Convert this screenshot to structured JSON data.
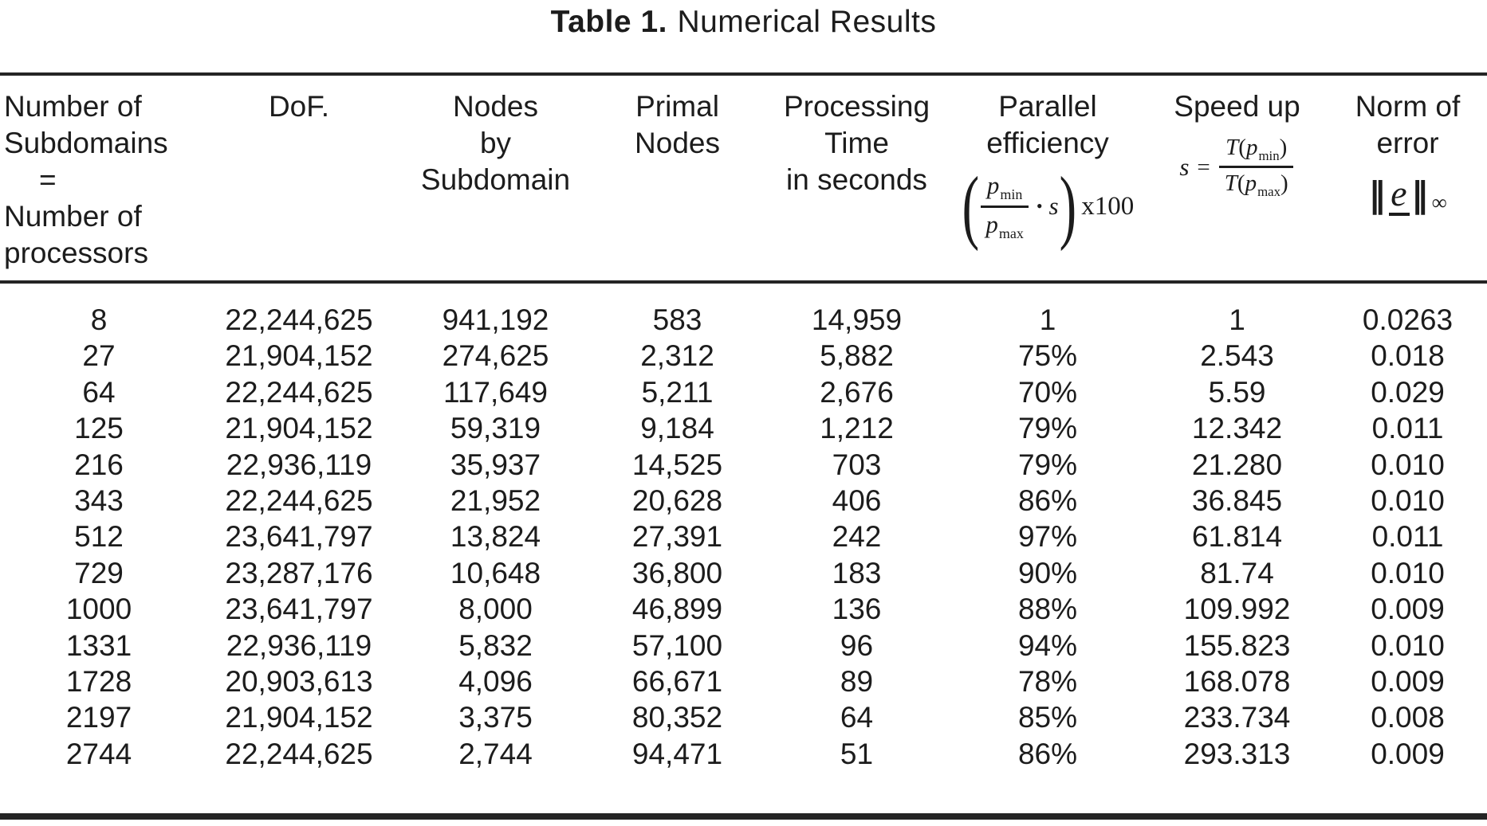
{
  "page": {
    "background": "#ffffff",
    "ink": "#1c1c1c"
  },
  "title": {
    "bold": "Table 1.",
    "rest": "Numerical Results"
  },
  "table": {
    "columns": [
      {
        "id": "subdomains",
        "header_lines": [
          "Number of",
          "Subdomains",
          "=",
          "Number of",
          "processors"
        ]
      },
      {
        "id": "dof",
        "header_lines": [
          "DoF."
        ]
      },
      {
        "id": "nodes_by_subdomain",
        "header_lines": [
          "Nodes",
          "by",
          "Subdomain"
        ]
      },
      {
        "id": "primal_nodes",
        "header_lines": [
          "Primal",
          "Nodes"
        ]
      },
      {
        "id": "processing_time",
        "header_lines": [
          "Processing",
          "Time",
          "in seconds"
        ]
      },
      {
        "id": "parallel_efficiency",
        "header_lines": [
          "Parallel",
          "efficiency"
        ]
      },
      {
        "id": "speed_up",
        "header_lines": [
          "Speed up"
        ]
      },
      {
        "id": "norm_of_error",
        "header_lines": [
          "Norm of",
          "error"
        ]
      }
    ],
    "formulas": {
      "efficiency": {
        "open": "(",
        "num_base": "p",
        "num_sub": "min",
        "den_base": "p",
        "den_sub": "max",
        "dot": "•",
        "var": "s",
        "close": ")",
        "suffix": "x100"
      },
      "speedup": {
        "lhs": "s",
        "equals": "=",
        "num_fn": "T",
        "num_open": "(",
        "num_base": "p",
        "num_sub": "min",
        "num_close": ")",
        "den_fn": "T",
        "den_open": "(",
        "den_base": "p",
        "den_sub": "max",
        "den_close": ")"
      },
      "norm": {
        "left_bars": "‖",
        "symbol": "e",
        "right_bars": "‖",
        "subscript": "∞"
      }
    },
    "rows": [
      [
        "8",
        "22,244,625",
        "941,192",
        "583",
        "14,959",
        "1",
        "1",
        "0.0263"
      ],
      [
        "27",
        "21,904,152",
        "274,625",
        "2,312",
        "5,882",
        "75%",
        "2.543",
        "0.018"
      ],
      [
        "64",
        "22,244,625",
        "117,649",
        "5,211",
        "2,676",
        "70%",
        "5.59",
        "0.029"
      ],
      [
        "125",
        "21,904,152",
        "59,319",
        "9,184",
        "1,212",
        "79%",
        "12.342",
        "0.011"
      ],
      [
        "216",
        "22,936,119",
        "35,937",
        "14,525",
        "703",
        "79%",
        "21.280",
        "0.010"
      ],
      [
        "343",
        "22,244,625",
        "21,952",
        "20,628",
        "406",
        "86%",
        "36.845",
        "0.010"
      ],
      [
        "512",
        "23,641,797",
        "13,824",
        "27,391",
        "242",
        "97%",
        "61.814",
        "0.011"
      ],
      [
        "729",
        "23,287,176",
        "10,648",
        "36,800",
        "183",
        "90%",
        "81.74",
        "0.010"
      ],
      [
        "1000",
        "23,641,797",
        "8,000",
        "46,899",
        "136",
        "88%",
        "109.992",
        "0.009"
      ],
      [
        "1331",
        "22,936,119",
        "5,832",
        "57,100",
        "96",
        "94%",
        "155.823",
        "0.010"
      ],
      [
        "1728",
        "20,903,613",
        "4,096",
        "66,671",
        "89",
        "78%",
        "168.078",
        "0.009"
      ],
      [
        "2197",
        "21,904,152",
        "3,375",
        "80,352",
        "64",
        "85%",
        "233.734",
        "0.008"
      ],
      [
        "2744",
        "22,244,625",
        "2,744",
        "94,471",
        "51",
        "86%",
        "293.313",
        "0.009"
      ]
    ]
  }
}
